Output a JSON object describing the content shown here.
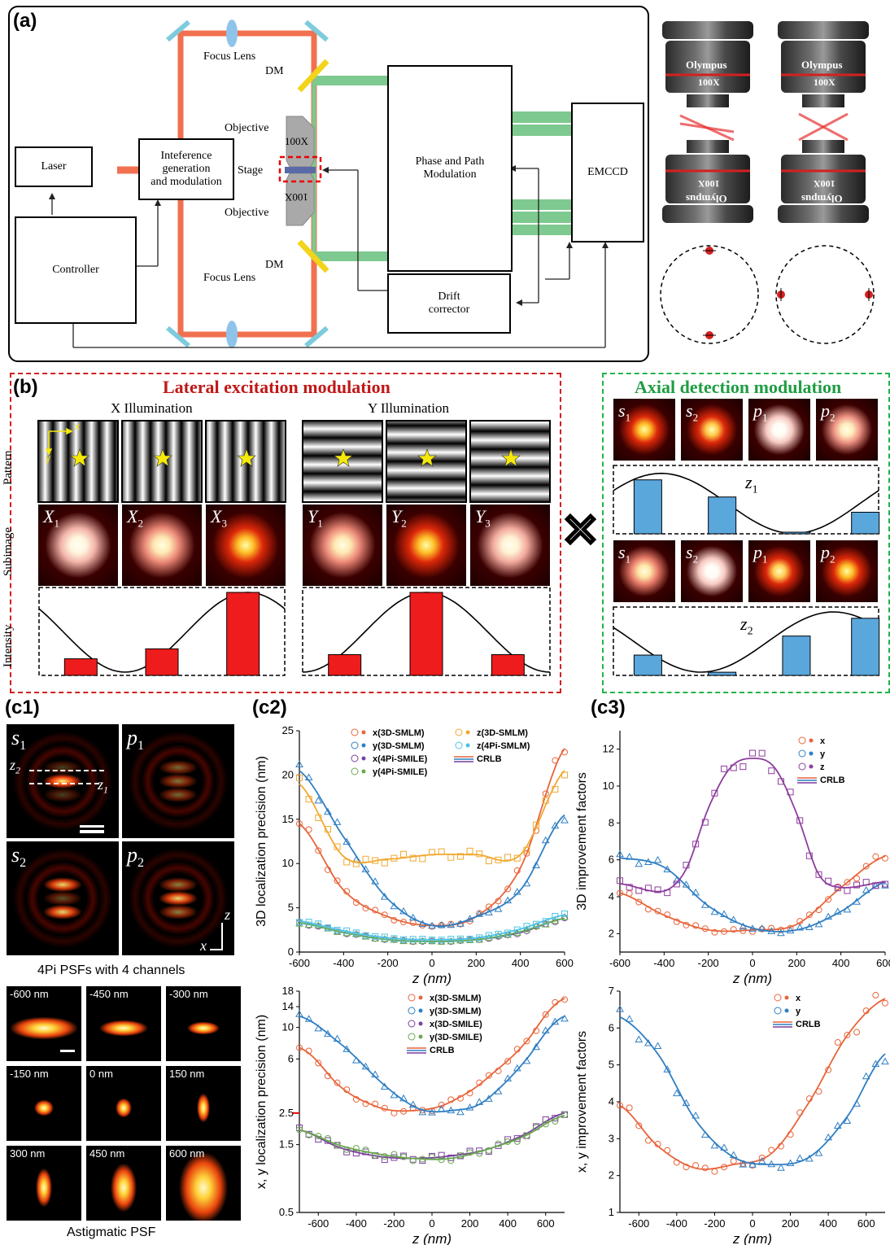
{
  "panel_a": {
    "label": "(a)",
    "boxes": {
      "laser": "Laser",
      "interference": "Inteference\ngeneration\nand modulation",
      "controller": "Controller",
      "phase": "Phase and Path\nModulation",
      "emccd": "EMCCD",
      "drift": "Drift\ncorrector"
    },
    "labels": {
      "focus_lens_top": "Focus Lens",
      "focus_lens_bottom": "Focus Lens",
      "dm_top": "DM",
      "dm_bottom": "DM",
      "objective_top": "Objective",
      "objective_bottom": "Objective",
      "stage": "Stage",
      "obj_mag_top": "100X",
      "obj_mag_bottom": "100X"
    },
    "objective_brand": "Olympus",
    "objective_mag": "100X",
    "colors": {
      "beam": "#f07050",
      "detect": "#7ec98f",
      "mirror": "#7ecbdc",
      "dm": "#f2d41a",
      "lens": "#8fc4ea"
    }
  },
  "panel_b": {
    "label": "(b)",
    "lateral_title": "Lateral excitation modulation",
    "axial_title": "Axial detection modulation",
    "x_illum": "X Illumination",
    "y_illum": "Y Illumination",
    "row_labels": [
      "Pattern",
      "Subimage",
      "Intensity"
    ],
    "axis_x": "x",
    "axis_y": "y",
    "x_sub": [
      "X",
      "X",
      "X"
    ],
    "y_sub": [
      "Y",
      "Y",
      "Y"
    ],
    "sub_idx": [
      "1",
      "2",
      "3"
    ],
    "axial_sub": [
      "s",
      "s",
      "p",
      "p"
    ],
    "axial_idx": [
      "1",
      "2",
      "1",
      "2"
    ],
    "z1_label": "z",
    "z1_idx": "1",
    "z2_label": "z",
    "z2_idx": "2",
    "x_bars": [
      0.2,
      0.32,
      1.0
    ],
    "y_bars": [
      0.25,
      1.0,
      0.25
    ],
    "z1_bars": [
      0.85,
      0.58,
      0.0,
      0.34
    ],
    "z2_bars": [
      0.32,
      0.05,
      0.62,
      0.9
    ]
  },
  "panel_c1": {
    "label": "(c1)",
    "psf_labels": [
      "s",
      "p",
      "s",
      "p"
    ],
    "psf_idx": [
      "1",
      "1",
      "2",
      "2"
    ],
    "z_lines": [
      "z",
      "z"
    ],
    "z_lines_idx": [
      "2",
      "1"
    ],
    "axis_z": "z",
    "axis_x": "x",
    "caption_4pi": "4Pi PSFs with 4 channels",
    "astig_labels": [
      "-600 nm",
      "-450 nm",
      "-300 nm",
      "-150 nm",
      "0 nm",
      "150 nm",
      "300 nm",
      "450 nm",
      "600 nm"
    ],
    "caption_astig": "Astigmatic PSF"
  },
  "chart_data": [
    {
      "id": "c2_top",
      "label": "(c2)",
      "type": "scatter",
      "xlabel": "z (nm)",
      "ylabel": "3D localization precision (nm)",
      "xlim": [
        -600,
        600
      ],
      "ylim": [
        0,
        25
      ],
      "xticks": [
        -600,
        -400,
        -200,
        0,
        200,
        400,
        600
      ],
      "yticks": [
        0,
        5,
        10,
        15,
        20,
        25
      ],
      "legend": [
        "x(3D-SMLM)",
        "y(3D-SMLM)",
        "x(4Pi-SMILE)",
        "y(4Pi-SMILE)",
        "z(3D-SMLM)",
        "z(4Pi-SMLM)",
        "CRLB"
      ],
      "series": [
        {
          "name": "x(3D-SMLM)",
          "color": "#e8643a",
          "x": [
            -600,
            -400,
            -200,
            0,
            200,
            400,
            600
          ],
          "y": [
            14.5,
            7.0,
            4.0,
            3.0,
            4.0,
            9.5,
            23.0
          ]
        },
        {
          "name": "y(3D-SMLM)",
          "color": "#2f7fc4",
          "x": [
            -600,
            -400,
            -200,
            0,
            200,
            400,
            600
          ],
          "y": [
            20.5,
            13.0,
            6.0,
            3.0,
            4.0,
            7.0,
            15.5
          ]
        },
        {
          "name": "z(3D-SMLM)",
          "color": "#f0a830",
          "x": [
            -600,
            -400,
            -200,
            0,
            200,
            400,
            600
          ],
          "y": [
            19.0,
            10.8,
            10.5,
            11.0,
            11.0,
            11.0,
            20.5
          ]
        },
        {
          "name": "x(4Pi-SMILE)",
          "color": "#7b3fa0",
          "x": [
            -600,
            -400,
            -200,
            0,
            200,
            400,
            600
          ],
          "y": [
            3.3,
            2.2,
            1.4,
            1.2,
            1.4,
            2.2,
            3.8
          ]
        },
        {
          "name": "y(4Pi-SMILE)",
          "color": "#6aa84f",
          "x": [
            -600,
            -400,
            -200,
            0,
            200,
            400,
            600
          ],
          "y": [
            3.3,
            2.2,
            1.4,
            1.2,
            1.4,
            2.3,
            3.8
          ]
        },
        {
          "name": "z(4Pi-SMLM)",
          "color": "#4cc3e6",
          "x": [
            -600,
            -400,
            -200,
            0,
            200,
            400,
            600
          ],
          "y": [
            3.5,
            2.4,
            1.6,
            1.4,
            1.6,
            2.6,
            4.2
          ]
        }
      ]
    },
    {
      "id": "c2_bottom",
      "type": "scatter",
      "xlabel": "z (nm)",
      "ylabel": "x, y localization precision (nm)",
      "xlim": [
        -700,
        700
      ],
      "ylim": [
        0.5,
        18
      ],
      "yscale": "log",
      "xticks": [
        -600,
        -400,
        -200,
        0,
        200,
        400,
        600
      ],
      "yticks": [
        0.5,
        1.5,
        2.5,
        6,
        10,
        14,
        18
      ],
      "marked_value": 2.5,
      "legend": [
        "x(3D-SMLM)",
        "y(3D-SMLM)",
        "x(3D-SMILE)",
        "y(3D-SMILE)",
        "CRLB"
      ],
      "series": [
        {
          "name": "x(3D-SMLM)",
          "color": "#e8643a",
          "x": [
            -700,
            -500,
            -300,
            -100,
            100,
            300,
            500,
            700
          ],
          "y": [
            7.2,
            4.0,
            2.8,
            2.6,
            3.0,
            4.5,
            8.0,
            16.0
          ]
        },
        {
          "name": "y(3D-SMLM)",
          "color": "#2f7fc4",
          "x": [
            -700,
            -500,
            -300,
            -100,
            100,
            300,
            500,
            700
          ],
          "y": [
            12.0,
            8.0,
            4.5,
            2.8,
            2.6,
            3.2,
            6.0,
            12.0
          ]
        },
        {
          "name": "x(3D-SMILE)",
          "color": "#7b3fa0",
          "x": [
            -700,
            -500,
            -300,
            -100,
            100,
            300,
            500,
            700
          ],
          "y": [
            1.9,
            1.45,
            1.25,
            1.2,
            1.25,
            1.4,
            1.8,
            2.5
          ]
        },
        {
          "name": "y(3D-SMILE)",
          "color": "#6aa84f",
          "x": [
            -700,
            -500,
            -300,
            -100,
            100,
            300,
            500,
            700
          ],
          "y": [
            1.9,
            1.5,
            1.3,
            1.2,
            1.2,
            1.4,
            1.75,
            2.4
          ]
        }
      ]
    },
    {
      "id": "c3_top",
      "label": "(c3)",
      "type": "scatter",
      "xlabel": "z (nm)",
      "ylabel": "3D improvement  factors",
      "xlim": [
        -600,
        600
      ],
      "ylim": [
        1,
        13
      ],
      "xticks": [
        -600,
        -400,
        -200,
        0,
        200,
        400,
        600
      ],
      "yticks": [
        2,
        4,
        6,
        8,
        10,
        12
      ],
      "legend": [
        "x",
        "y",
        "z",
        "CRLB"
      ],
      "series": [
        {
          "name": "x",
          "color": "#e8643a",
          "x": [
            -600,
            -400,
            -200,
            0,
            200,
            400,
            600
          ],
          "y": [
            4.2,
            3.0,
            2.2,
            2.2,
            2.5,
            4.5,
            6.2
          ]
        },
        {
          "name": "y",
          "color": "#2f7fc4",
          "x": [
            -600,
            -400,
            -200,
            0,
            200,
            400,
            600
          ],
          "y": [
            6.1,
            5.6,
            3.5,
            2.3,
            2.2,
            3.2,
            4.8
          ]
        },
        {
          "name": "z",
          "color": "#8e3d9e",
          "x": [
            -600,
            -400,
            -300,
            -200,
            -100,
            0,
            100,
            200,
            300,
            400,
            600
          ],
          "y": [
            4.7,
            4.3,
            5.5,
            8.8,
            11.0,
            11.5,
            11.0,
            8.5,
            5.2,
            4.5,
            4.8
          ]
        }
      ]
    },
    {
      "id": "c3_bottom",
      "type": "scatter",
      "xlabel": "z (nm)",
      "ylabel": "x, y improvement  factors",
      "xlim": [
        -700,
        700
      ],
      "ylim": [
        1,
        7
      ],
      "xticks": [
        -600,
        -400,
        -200,
        0,
        200,
        400,
        600
      ],
      "yticks": [
        1,
        2,
        3,
        4,
        5,
        6,
        7
      ],
      "legend": [
        "x",
        "y",
        "CRLB"
      ],
      "series": [
        {
          "name": "x",
          "color": "#e8643a",
          "x": [
            -700,
            -500,
            -300,
            -100,
            100,
            300,
            500,
            700
          ],
          "y": [
            3.9,
            2.8,
            2.2,
            2.3,
            2.6,
            4.0,
            5.8,
            6.8
          ]
        },
        {
          "name": "y",
          "color": "#2f7fc4",
          "x": [
            -700,
            -500,
            -300,
            -100,
            100,
            300,
            500,
            700
          ],
          "y": [
            6.3,
            5.3,
            3.5,
            2.5,
            2.3,
            2.5,
            3.6,
            5.3
          ]
        }
      ]
    }
  ]
}
